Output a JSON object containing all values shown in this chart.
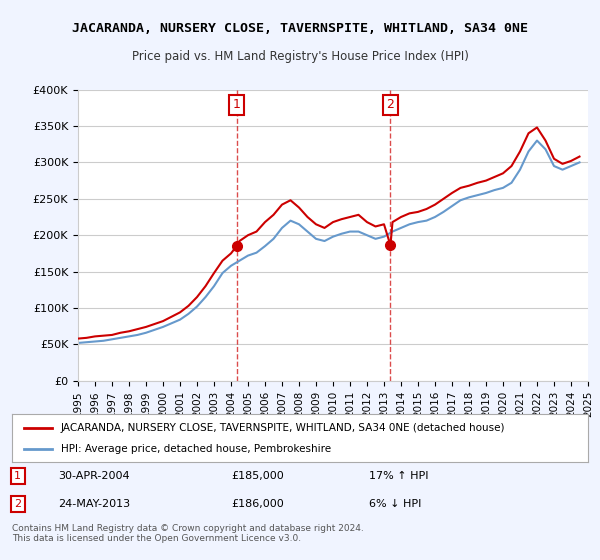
{
  "title": "JACARANDA, NURSERY CLOSE, TAVERNSPITE, WHITLAND, SA34 0NE",
  "subtitle": "Price paid vs. HM Land Registry's House Price Index (HPI)",
  "legend_line1": "JACARANDA, NURSERY CLOSE, TAVERNSPITE, WHITLAND, SA34 0NE (detached house)",
  "legend_line2": "HPI: Average price, detached house, Pembrokeshire",
  "footer": "Contains HM Land Registry data © Crown copyright and database right 2024.\nThis data is licensed under the Open Government Licence v3.0.",
  "sale1_label": "1",
  "sale1_date": "30-APR-2004",
  "sale1_price": "£185,000",
  "sale1_hpi": "17% ↑ HPI",
  "sale2_label": "2",
  "sale2_date": "24-MAY-2013",
  "sale2_price": "£186,000",
  "sale2_hpi": "6% ↓ HPI",
  "ylim": [
    0,
    400000
  ],
  "yticks": [
    0,
    50000,
    100000,
    150000,
    200000,
    250000,
    300000,
    350000,
    400000
  ],
  "ytick_labels": [
    "£0",
    "£50K",
    "£100K",
    "£150K",
    "£200K",
    "£250K",
    "£300K",
    "£350K",
    "£400K"
  ],
  "background_color": "#f0f4ff",
  "plot_bg_color": "#ffffff",
  "red_color": "#cc0000",
  "blue_color": "#6699cc",
  "vline_color": "#cc0000",
  "grid_color": "#cccccc",
  "sale1_x": 2004.33,
  "sale2_x": 2013.38,
  "hpi_years": [
    1995,
    1995.5,
    1996,
    1996.5,
    1997,
    1997.5,
    1998,
    1998.5,
    1999,
    1999.5,
    2000,
    2000.5,
    2001,
    2001.5,
    2002,
    2002.5,
    2003,
    2003.5,
    2004,
    2004.5,
    2005,
    2005.5,
    2006,
    2006.5,
    2007,
    2007.5,
    2008,
    2008.5,
    2009,
    2009.5,
    2010,
    2010.5,
    2011,
    2011.5,
    2012,
    2012.5,
    2013,
    2013.5,
    2014,
    2014.5,
    2015,
    2015.5,
    2016,
    2016.5,
    2017,
    2017.5,
    2018,
    2018.5,
    2019,
    2019.5,
    2020,
    2020.5,
    2021,
    2021.5,
    2022,
    2022.5,
    2023,
    2023.5,
    2024,
    2024.5
  ],
  "hpi_values": [
    52000,
    53000,
    54000,
    55000,
    57000,
    59000,
    61000,
    63000,
    66000,
    70000,
    74000,
    79000,
    84000,
    92000,
    102000,
    115000,
    130000,
    148000,
    158000,
    165000,
    172000,
    176000,
    185000,
    195000,
    210000,
    220000,
    215000,
    205000,
    195000,
    192000,
    198000,
    202000,
    205000,
    205000,
    200000,
    195000,
    198000,
    205000,
    210000,
    215000,
    218000,
    220000,
    225000,
    232000,
    240000,
    248000,
    252000,
    255000,
    258000,
    262000,
    265000,
    272000,
    290000,
    315000,
    330000,
    318000,
    295000,
    290000,
    295000,
    300000
  ],
  "price_years": [
    1995,
    1995.5,
    1996,
    1996.5,
    1997,
    1997.5,
    1998,
    1998.5,
    1999,
    1999.5,
    2000,
    2000.5,
    2001,
    2001.5,
    2002,
    2002.5,
    2003,
    2003.5,
    2004,
    2004.33,
    2004.5,
    2005,
    2005.5,
    2006,
    2006.5,
    2007,
    2007.5,
    2008,
    2008.5,
    2009,
    2009.5,
    2010,
    2010.5,
    2011,
    2011.5,
    2012,
    2012.5,
    2013,
    2013.38,
    2013.5,
    2014,
    2014.5,
    2015,
    2015.5,
    2016,
    2016.5,
    2017,
    2017.5,
    2018,
    2018.5,
    2019,
    2019.5,
    2020,
    2020.5,
    2021,
    2021.5,
    2022,
    2022.5,
    2023,
    2023.5,
    2024,
    2024.5
  ],
  "price_values": [
    58000,
    59000,
    61000,
    62000,
    63000,
    66000,
    68000,
    71000,
    74000,
    78000,
    82000,
    88000,
    94000,
    103000,
    115000,
    130000,
    148000,
    165000,
    175000,
    185000,
    192000,
    200000,
    205000,
    218000,
    228000,
    242000,
    248000,
    238000,
    225000,
    215000,
    210000,
    218000,
    222000,
    225000,
    228000,
    218000,
    212000,
    215000,
    186000,
    218000,
    225000,
    230000,
    232000,
    236000,
    242000,
    250000,
    258000,
    265000,
    268000,
    272000,
    275000,
    280000,
    285000,
    295000,
    315000,
    340000,
    348000,
    330000,
    305000,
    298000,
    302000,
    308000
  ],
  "xtick_years": [
    1995,
    1996,
    1997,
    1998,
    1999,
    2000,
    2001,
    2002,
    2003,
    2004,
    2005,
    2006,
    2007,
    2008,
    2009,
    2010,
    2011,
    2012,
    2013,
    2014,
    2015,
    2016,
    2017,
    2018,
    2019,
    2020,
    2021,
    2022,
    2023,
    2024,
    2025
  ]
}
